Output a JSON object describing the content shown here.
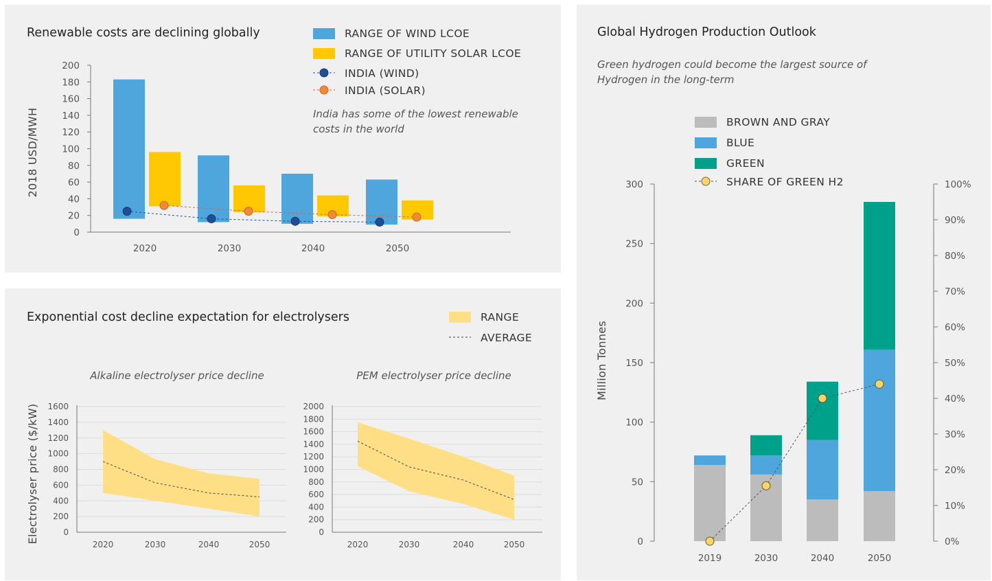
{
  "colors": {
    "wind": "#4fa6dc",
    "solar": "#ffc800",
    "india_wind": "#1f4e96",
    "india_solar": "#f08a36",
    "range": "#ffdf85",
    "brown_gray": "#bcbcbc",
    "blue": "#4fa6dc",
    "green": "#00a18a",
    "share": "#f7d56b"
  },
  "chart_data": [
    {
      "type": "bar",
      "title": "Renewable costs are declining globally",
      "subtitle": "India has some of the lowest renewable costs in the world",
      "ylabel": "2018 USD/MWH",
      "ylim": [
        0,
        200
      ],
      "yticks": [
        "0",
        "20",
        "40",
        "60",
        "80",
        "100",
        "120",
        "140",
        "160",
        "180",
        "200"
      ],
      "categories": [
        "2020",
        "2030",
        "2040",
        "2050"
      ],
      "legend": [
        "RANGE OF WIND LCOE",
        "RANGE OF UTILITY SOLAR LCOE",
        "INDIA (WIND)",
        "INDIA (SOLAR)"
      ],
      "series": [
        {
          "name": "RANGE OF WIND LCOE",
          "low": [
            16,
            12,
            10,
            9
          ],
          "high": [
            183,
            92,
            70,
            63
          ]
        },
        {
          "name": "RANGE OF UTILITY SOLAR LCOE",
          "low": [
            31,
            24,
            19,
            15
          ],
          "high": [
            96,
            56,
            44,
            38
          ]
        },
        {
          "name": "INDIA (WIND)",
          "values": [
            25,
            16,
            13,
            12
          ]
        },
        {
          "name": "INDIA (SOLAR)",
          "values": [
            32,
            25,
            21,
            18
          ]
        }
      ]
    },
    {
      "type": "area",
      "title": "Exponential cost decline expectation for electrolysers",
      "legend": [
        "RANGE",
        "AVERAGE"
      ],
      "ylabel": "Electrolyser price ($/kW)",
      "panels": [
        {
          "subtitle": "Alkaline electrolyser price decline",
          "x": [
            "2020",
            "2030",
            "2040",
            "2050"
          ],
          "ylim": [
            0,
            1600
          ],
          "yticks": [
            "0",
            "200",
            "400",
            "600",
            "800",
            "1000",
            "1200",
            "1400",
            "1600"
          ],
          "range_low": [
            500,
            400,
            300,
            200
          ],
          "range_high": [
            1300,
            930,
            750,
            680
          ],
          "average": [
            900,
            630,
            500,
            450
          ]
        },
        {
          "subtitle": "PEM electrolyser price decline",
          "x": [
            "2020",
            "2030",
            "2040",
            "2050"
          ],
          "ylim": [
            0,
            2000
          ],
          "yticks": [
            "0",
            "200",
            "400",
            "600",
            "800",
            "1000",
            "1200",
            "1400",
            "1600",
            "1800",
            "2000"
          ],
          "range_low": [
            1050,
            650,
            450,
            200
          ],
          "range_high": [
            1750,
            1490,
            1200,
            900
          ],
          "average": [
            1450,
            1040,
            830,
            520
          ]
        }
      ]
    },
    {
      "type": "bar",
      "stacked": true,
      "title": "Global Hydrogen Production Outlook",
      "subtitle": "Green hydrogen could become the largest source of Hydrogen in the long-term",
      "ylabel": "Million Tonnes",
      "ylim": [
        0,
        300
      ],
      "yticks": [
        "0",
        "50",
        "100",
        "150",
        "200",
        "250",
        "300"
      ],
      "y2lim": [
        0,
        100
      ],
      "y2ticks": [
        "0%",
        "10%",
        "20%",
        "30%",
        "40%",
        "50%",
        "60%",
        "70%",
        "80%",
        "90%",
        "100%"
      ],
      "categories": [
        "2019",
        "2030",
        "2040",
        "2050"
      ],
      "legend": [
        "BROWN AND GRAY",
        "BLUE",
        "GREEN",
        "SHARE OF GREEN H2"
      ],
      "series": [
        {
          "name": "BROWN AND GRAY",
          "values": [
            64,
            56,
            35,
            42
          ]
        },
        {
          "name": "BLUE",
          "values": [
            8,
            16,
            50,
            119
          ]
        },
        {
          "name": "GREEN",
          "values": [
            0,
            17,
            49,
            124
          ]
        },
        {
          "name": "SHARE OF GREEN H2",
          "values": [
            0,
            15.5,
            40,
            44
          ],
          "axis": "right"
        }
      ]
    }
  ]
}
